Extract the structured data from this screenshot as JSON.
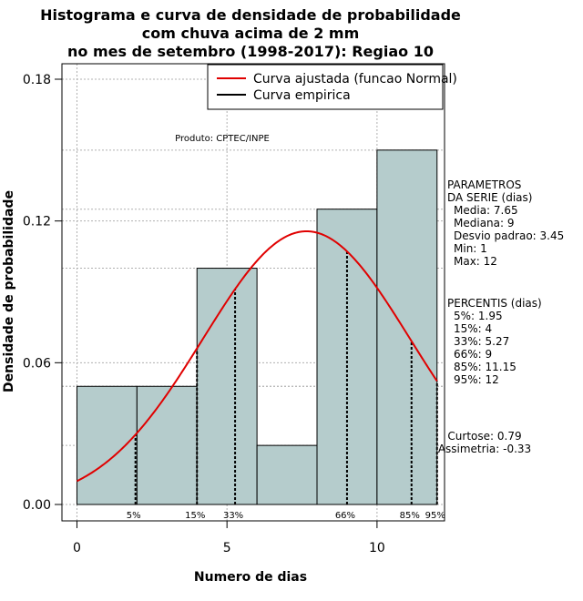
{
  "chart_data": {
    "type": "bar",
    "title": [
      "Histograma e curva de densidade de probabilidade",
      "com chuva acima de 2 mm",
      "no mes de setembro (1998-2017): Regiao 10"
    ],
    "xlabel": "Numero de dias",
    "ylabel": "Densidade de probabilidade",
    "xlim": [
      -0.5,
      12.25
    ],
    "ylim": [
      0,
      0.18
    ],
    "x_ticks": [
      0,
      5,
      10
    ],
    "y_ticks": [
      0.0,
      0.06,
      0.12,
      0.18
    ],
    "y_tick_labels": [
      "0.00",
      "0.06",
      "0.12",
      "0.18"
    ],
    "grid": true,
    "bar_color": "#b5cccc",
    "bins": [
      {
        "x0": 0,
        "x1": 2,
        "density": 0.05
      },
      {
        "x0": 2,
        "x1": 4,
        "density": 0.05
      },
      {
        "x0": 4,
        "x1": 6,
        "density": 0.1
      },
      {
        "x0": 6,
        "x1": 8,
        "density": 0.025
      },
      {
        "x0": 8,
        "x1": 10,
        "density": 0.125
      },
      {
        "x0": 10,
        "x1": 12,
        "density": 0.15
      }
    ],
    "normal_fit": {
      "mean": 7.65,
      "sd": 3.45,
      "color": "#e00000"
    },
    "percentile_lines": [
      {
        "label": "5%",
        "x": 1.95
      },
      {
        "label": "15%",
        "x": 4
      },
      {
        "label": "33%",
        "x": 5.27
      },
      {
        "label": "66%",
        "x": 9
      },
      {
        "label": "85%",
        "x": 11.15
      },
      {
        "label": "95%",
        "x": 12
      }
    ],
    "legend": {
      "placement": "top-right",
      "entries": [
        {
          "label": "Curva ajustada (funcao Normal)",
          "color": "#e00000"
        },
        {
          "label": "Curva empirica",
          "color": "#000000"
        }
      ]
    },
    "annotation": "Produto: CPTEC/INPE",
    "parametros": {
      "header": [
        "PARAMETROS",
        "DA SERIE (dias)"
      ],
      "lines": [
        "Media: 7.65",
        "Mediana: 9",
        "Desvio padrao: 3.45",
        "Min: 1",
        "Max: 12"
      ]
    },
    "percentis": {
      "header": "PERCENTIS (dias)",
      "lines": [
        "5%: 1.95",
        "15%: 4",
        "33%: 5.27",
        "66%: 9",
        "85%: 11.15",
        "95%: 12"
      ]
    },
    "shape": {
      "lines": [
        "Curtose: 0.79",
        "Assimetria: -0.33"
      ]
    }
  }
}
